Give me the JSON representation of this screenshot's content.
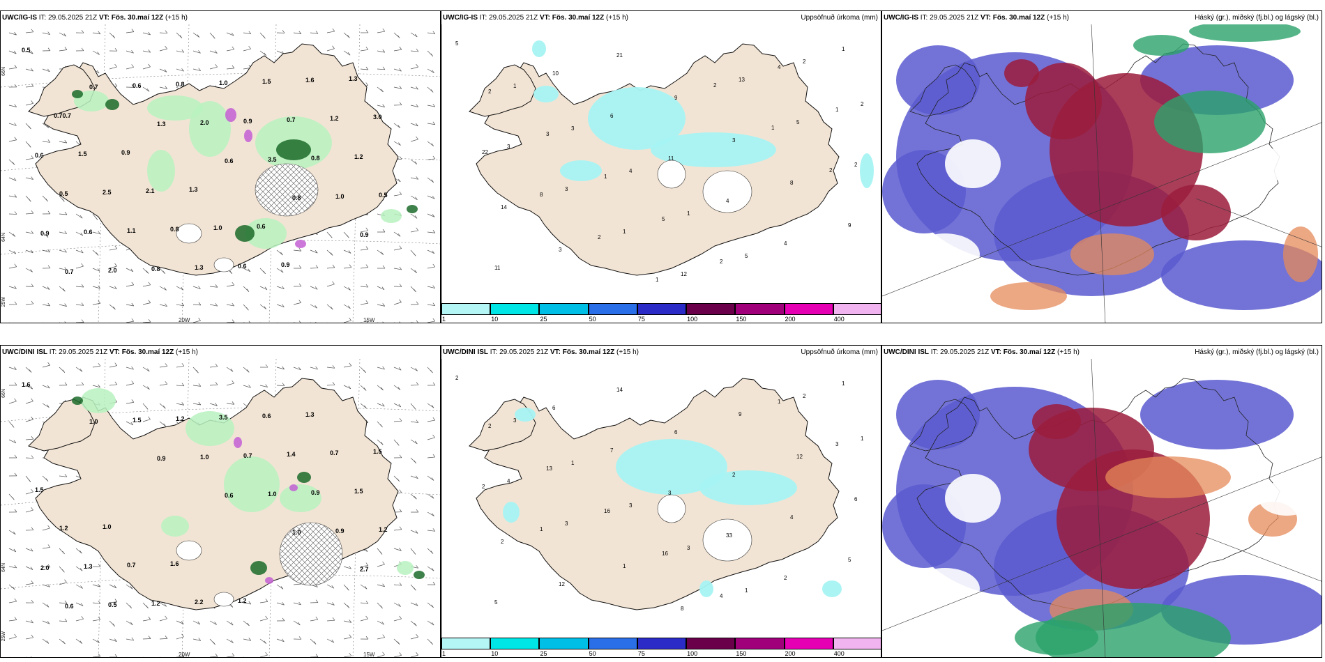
{
  "rows": [
    {
      "model": "UWC/IG-IS",
      "it_label": "IT:",
      "it_value": "29.05.2025 21Z",
      "vt_label": "VT:",
      "vt_value": "Fös. 30.maí 12Z",
      "lead": "(+15 h)",
      "lon_ticks": [
        "20W",
        "15W"
      ],
      "lat_ticks": [
        "66N",
        "64N",
        "25W"
      ],
      "precip_title": "Uppsöfnuð úrkoma (mm)",
      "cloud_title": "Háský (gr.), miðský (fj.bl.) og lágský (bl.)",
      "left_values": [
        "0.5",
        "0.7",
        "1.3",
        "0.6",
        "0.8",
        "0.9",
        "0.7",
        "0.6",
        "2.0",
        "3.5",
        "1.0",
        "0.9",
        "2.0",
        "0.8",
        "0.9",
        "0.8",
        "0.5",
        "0.6",
        "0.8",
        "1.0",
        "0.7",
        "1.2",
        "0.5",
        "1.1",
        "1.3",
        "1.5",
        "1.2",
        "0.6",
        "2.5",
        "0.8",
        "0.6",
        "1.6",
        "3.0",
        "1.5",
        "2.1",
        "1.0",
        "0.9",
        "1.3",
        "0.70.7",
        "0.9",
        "1.3",
        "0.6"
      ],
      "mid_values": [
        "5",
        "1",
        "3",
        "4",
        "1",
        "5",
        "2",
        "2",
        "3",
        "3",
        "1",
        "12",
        "13",
        "5",
        "2",
        "14",
        "3",
        "21",
        "9",
        "3",
        "8",
        "9",
        "11",
        "10",
        "6",
        "11",
        "4",
        "4",
        "1",
        "2",
        "3",
        "1",
        "5",
        "2",
        "4",
        "1",
        "22",
        "8",
        "2",
        "1",
        "2",
        "1",
        "2"
      ]
    },
    {
      "model": "UWC/DINI ISL",
      "it_label": "IT:",
      "it_value": "29.05.2025 21Z",
      "vt_label": "VT:",
      "vt_value": "Fös. 30.maí 12Z",
      "lead": "(+15 h)",
      "lon_ticks": [
        "20W",
        "15W"
      ],
      "lat_ticks": [
        "66N",
        "64N",
        "25W"
      ],
      "precip_title": "Uppsöfnuð úrkoma (mm)",
      "cloud_title": "Háský (gr.), miðský (fj.bl.) og lágský (bl.)",
      "left_values": [
        "1.6",
        "1.0",
        "0.9",
        "0.6",
        "1.0",
        "2.7",
        "0.6",
        "1.5",
        "1.0",
        "1.0",
        "0.9",
        "2.0",
        "0.5",
        "1.2",
        "0.7",
        "0.9",
        "1.2",
        "1.3",
        "1.2",
        "3.5",
        "1.4",
        "1.5",
        "1.2",
        "0.7",
        "2.2",
        "0.6",
        "0.7",
        "1.5",
        "1.0",
        "1.6",
        "1.2",
        "1.3",
        "1.5"
      ],
      "mid_values": [
        "2",
        "3",
        "1",
        "3",
        "3",
        "1",
        "2",
        "1",
        "4",
        "3",
        "1",
        "8",
        "9",
        "12",
        "6",
        "2",
        "12",
        "14",
        "6",
        "2",
        "4",
        "5",
        "5",
        "6",
        "7",
        "3",
        "33",
        "2",
        "1",
        "2",
        "13",
        "16",
        "16",
        "4",
        "1",
        "3",
        "2",
        "1"
      ]
    }
  ],
  "colorbar": {
    "labels": [
      "1",
      "10",
      "25",
      "50",
      "75",
      "100",
      "150",
      "200",
      "400"
    ],
    "colors": [
      "#b4f5f5",
      "#00e6e6",
      "#00bfe6",
      "#2a6fe8",
      "#2b2bc8",
      "#6a004a",
      "#a0007a",
      "#e600b4",
      "#f2b4f0"
    ]
  },
  "colors": {
    "land": "#f2e4d4",
    "light_green": "#b9f2c0",
    "dark_green": "#1c6b2a",
    "magenta": "#c35fd4",
    "precip_cyan": "#a7f3f3",
    "cloud_blue": "#5a5ad0",
    "cloud_red": "#9b1c3c",
    "cloud_green": "#2aa36a",
    "cloud_orange": "#e58a5a"
  }
}
